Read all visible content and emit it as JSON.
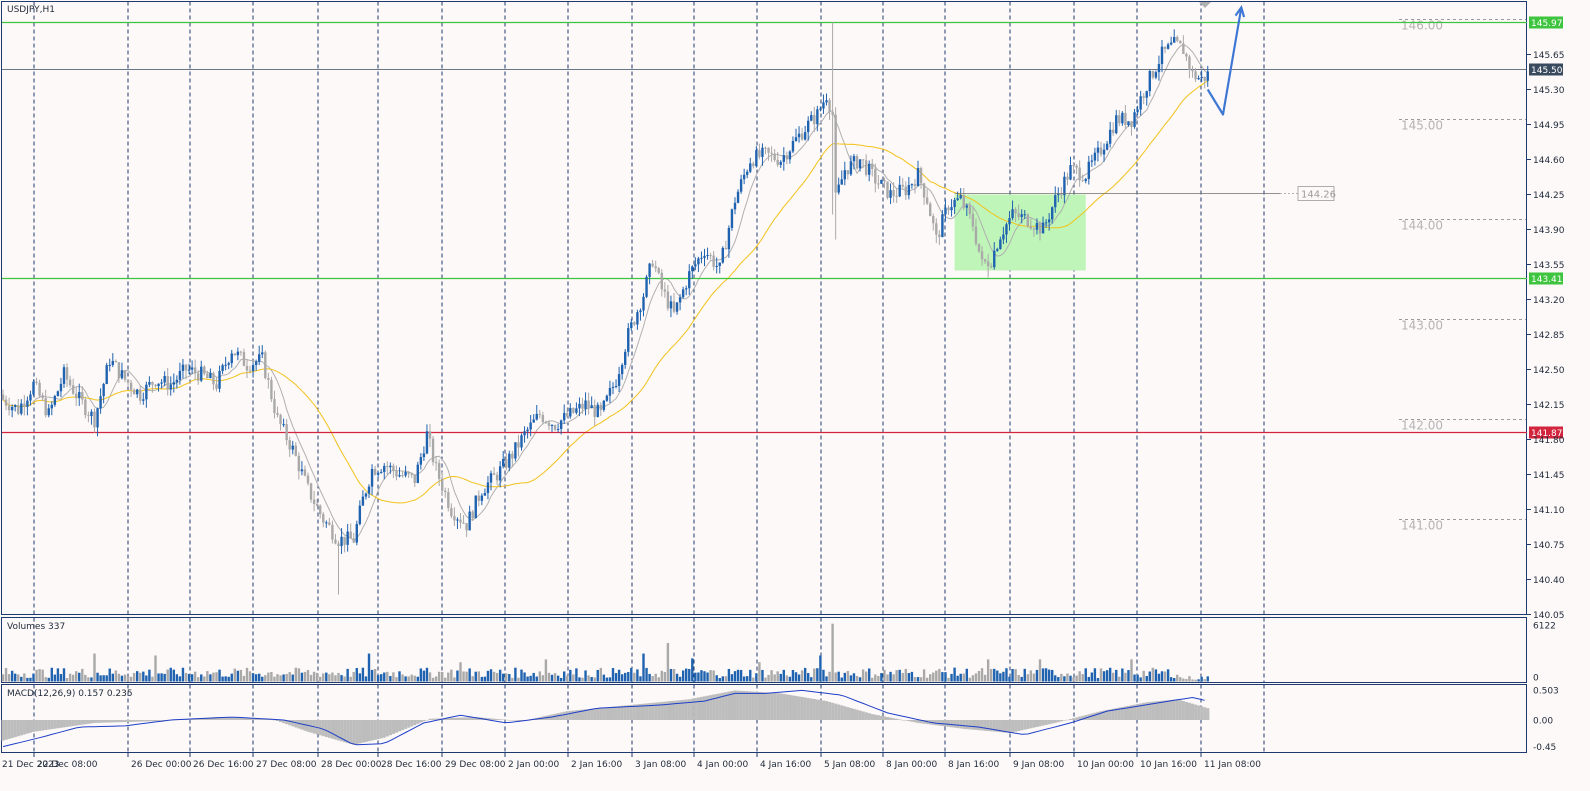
{
  "window": {
    "symbol_title": "USDJPY,H1"
  },
  "colors": {
    "background": "#fdf9f8",
    "frame": "#1f3a6e",
    "bull": "#1f63b0",
    "bear": "#a9a9a9",
    "ma_fast": "#b0b0b0",
    "ma_slow": "#f2c21b",
    "support_resistance": "#3ec43e",
    "key_level": "#d2243c",
    "zone_fill": "#bff5b8",
    "forecast_arrow": "#3e78d4",
    "macd_signal": "#1f3fc8",
    "macd_hist": "#bdbdbd"
  },
  "chart_data": [
    {
      "type": "candlestick",
      "title": "USDJPY,H1",
      "ylim": [
        140.05,
        146.18
      ],
      "y_ticks": [
        "145.65",
        "145.30",
        "144.95",
        "144.60",
        "144.25",
        "143.90",
        "143.55",
        "143.20",
        "142.85",
        "142.50",
        "142.15",
        "141.80",
        "141.45",
        "141.10",
        "140.75",
        "140.40",
        "140.05"
      ],
      "x_tick_labels": [
        "21 Dec 2023",
        "22 Dec 08:00",
        "26 Dec 00:00",
        "26 Dec 16:00",
        "27 Dec 08:00",
        "28 Dec 00:00",
        "28 Dec 16:00",
        "29 Dec 08:00",
        "2 Jan 00:00",
        "2 Jan 16:00",
        "3 Jan 08:00",
        "4 Jan 00:00",
        "4 Jan 16:00",
        "5 Jan 08:00",
        "8 Jan 00:00",
        "8 Jan 16:00",
        "9 Jan 08:00",
        "10 Jan 00:00",
        "10 Jan 16:00",
        "11 Jan 08:00"
      ],
      "price_path": [
        [
          0,
          142.2
        ],
        [
          5,
          142.1
        ],
        [
          10,
          142.35
        ],
        [
          15,
          142.05
        ],
        [
          20,
          142.45
        ],
        [
          25,
          142.2
        ],
        [
          30,
          142.0
        ],
        [
          35,
          142.6
        ],
        [
          40,
          142.4
        ],
        [
          45,
          142.25
        ],
        [
          50,
          142.4
        ],
        [
          55,
          142.35
        ],
        [
          60,
          142.5
        ],
        [
          65,
          142.45
        ],
        [
          70,
          142.35
        ],
        [
          75,
          142.7
        ],
        [
          80,
          142.55
        ],
        [
          85,
          142.6
        ],
        [
          90,
          142.0
        ],
        [
          95,
          141.7
        ],
        [
          100,
          141.3
        ],
        [
          105,
          141.0
        ],
        [
          110,
          140.8
        ],
        [
          115,
          140.8
        ],
        [
          118,
          141.2
        ],
        [
          121,
          141.5
        ],
        [
          125,
          141.55
        ],
        [
          130,
          141.45
        ],
        [
          135,
          141.4
        ],
        [
          139,
          141.85
        ],
        [
          142,
          141.5
        ],
        [
          147,
          141.1
        ],
        [
          152,
          140.95
        ],
        [
          157,
          141.3
        ],
        [
          162,
          141.45
        ],
        [
          167,
          141.65
        ],
        [
          171,
          141.85
        ],
        [
          176,
          142.05
        ],
        [
          181,
          141.95
        ],
        [
          186,
          142.05
        ],
        [
          191,
          142.15
        ],
        [
          196,
          142.05
        ],
        [
          201,
          142.4
        ],
        [
          205,
          142.85
        ],
        [
          210,
          143.25
        ],
        [
          213,
          143.6
        ],
        [
          216,
          143.3
        ],
        [
          220,
          143.05
        ],
        [
          225,
          143.45
        ],
        [
          230,
          143.7
        ],
        [
          235,
          143.5
        ],
        [
          240,
          144.2
        ],
        [
          245,
          144.6
        ],
        [
          250,
          144.65
        ],
        [
          255,
          144.6
        ],
        [
          260,
          144.8
        ],
        [
          264,
          144.95
        ],
        [
          267,
          145.05
        ],
        [
          270,
          145.25
        ],
        [
          272,
          145.05
        ],
        [
          273,
          144.2
        ],
        [
          276,
          144.5
        ],
        [
          281,
          144.6
        ],
        [
          286,
          144.4
        ],
        [
          291,
          144.25
        ],
        [
          296,
          144.3
        ],
        [
          300,
          144.45
        ],
        [
          303,
          144.2
        ],
        [
          306,
          143.8
        ],
        [
          310,
          144.15
        ],
        [
          314,
          144.2
        ],
        [
          318,
          143.95
        ],
        [
          321,
          143.55
        ],
        [
          324,
          143.6
        ],
        [
          327,
          143.85
        ],
        [
          331,
          144.05
        ],
        [
          336,
          144.0
        ],
        [
          341,
          143.9
        ],
        [
          345,
          144.2
        ],
        [
          350,
          144.5
        ],
        [
          355,
          144.45
        ],
        [
          360,
          144.7
        ],
        [
          365,
          145.0
        ],
        [
          370,
          145.0
        ],
        [
          375,
          145.35
        ],
        [
          380,
          145.65
        ],
        [
          384,
          145.75
        ],
        [
          387,
          145.7
        ],
        [
          390,
          145.45
        ],
        [
          393,
          145.4
        ],
        [
          395,
          145.45
        ]
      ],
      "special_candles": [
        {
          "i": 110,
          "low": 140.25
        },
        {
          "i": 272,
          "high": 145.97,
          "low": 144.05
        },
        {
          "i": 273,
          "low": 143.8
        },
        {
          "i": 323,
          "low": 143.42
        }
      ],
      "total_bars": 396,
      "series": [
        {
          "color": "#b0b0b0",
          "period": 8
        },
        {
          "color": "#f2c21b",
          "period": 32
        }
      ],
      "horizontal_levels": [
        {
          "price": 145.97,
          "label": "145.97",
          "color": "#3ec43e"
        },
        {
          "price": 145.5,
          "label": "145.50",
          "color": "#3a4a5e"
        },
        {
          "price": 143.41,
          "label": "143.41",
          "color": "#3ec43e"
        },
        {
          "price": 141.87,
          "label": "141.87",
          "color": "#d2243c"
        }
      ],
      "round_levels": [
        "146.00",
        "145.00",
        "144.00",
        "143.00",
        "142.00",
        "141.00"
      ],
      "marked_level": {
        "price": 144.26,
        "label": "144.26"
      },
      "zone": {
        "from_bar": 312,
        "to_bar": 355,
        "price_top": 144.25,
        "price_bottom": 143.49
      },
      "forecast_path": [
        [
          395,
          145.3
        ],
        [
          400,
          145.05
        ],
        [
          406,
          146.12
        ]
      ]
    },
    {
      "type": "bar",
      "title": "Volumes 337",
      "ylim": [
        0,
        6122
      ],
      "y_ticks": [
        "6122",
        "0"
      ],
      "baseline_volume": 900,
      "spikes": [
        {
          "i": 30,
          "v": 2900
        },
        {
          "i": 50,
          "v": 2700
        },
        {
          "i": 120,
          "v": 2900
        },
        {
          "i": 150,
          "v": 2000
        },
        {
          "i": 178,
          "v": 2300
        },
        {
          "i": 210,
          "v": 2900
        },
        {
          "i": 218,
          "v": 4000
        },
        {
          "i": 226,
          "v": 2400
        },
        {
          "i": 248,
          "v": 2000
        },
        {
          "i": 272,
          "v": 6000
        },
        {
          "i": 268,
          "v": 2700
        },
        {
          "i": 323,
          "v": 2300
        },
        {
          "i": 340,
          "v": 2300
        },
        {
          "i": 370,
          "v": 2300
        }
      ]
    },
    {
      "type": "line",
      "title": "MACD(12,26,9) 0.157 0.235",
      "ylim": [
        -0.55,
        0.6
      ],
      "y_ticks": [
        "0.503",
        "0.00",
        "-0.45"
      ],
      "histogram_path": [
        [
          0,
          -0.35
        ],
        [
          10,
          -0.2
        ],
        [
          30,
          -0.05
        ],
        [
          50,
          -0.02
        ],
        [
          70,
          0.05
        ],
        [
          88,
          0.02
        ],
        [
          100,
          -0.2
        ],
        [
          115,
          -0.42
        ],
        [
          125,
          -0.3
        ],
        [
          140,
          0.02
        ],
        [
          155,
          0.05
        ],
        [
          170,
          -0.02
        ],
        [
          185,
          0.15
        ],
        [
          205,
          0.25
        ],
        [
          225,
          0.35
        ],
        [
          240,
          0.5
        ],
        [
          255,
          0.45
        ],
        [
          270,
          0.32
        ],
        [
          285,
          0.1
        ],
        [
          300,
          -0.05
        ],
        [
          315,
          -0.15
        ],
        [
          330,
          -0.22
        ],
        [
          345,
          -0.05
        ],
        [
          360,
          0.15
        ],
        [
          375,
          0.3
        ],
        [
          385,
          0.35
        ],
        [
          395,
          0.2
        ]
      ],
      "signal_path": [
        [
          0,
          -0.45
        ],
        [
          12,
          -0.3
        ],
        [
          25,
          -0.12
        ],
        [
          40,
          -0.1
        ],
        [
          55,
          0.0
        ],
        [
          75,
          0.05
        ],
        [
          92,
          0.0
        ],
        [
          105,
          -0.15
        ],
        [
          115,
          -0.42
        ],
        [
          125,
          -0.4
        ],
        [
          138,
          -0.05
        ],
        [
          150,
          0.08
        ],
        [
          165,
          -0.05
        ],
        [
          180,
          0.05
        ],
        [
          195,
          0.2
        ],
        [
          215,
          0.25
        ],
        [
          230,
          0.32
        ],
        [
          240,
          0.45
        ],
        [
          250,
          0.45
        ],
        [
          262,
          0.5
        ],
        [
          275,
          0.42
        ],
        [
          290,
          0.12
        ],
        [
          305,
          -0.05
        ],
        [
          320,
          -0.12
        ],
        [
          335,
          -0.25
        ],
        [
          350,
          -0.05
        ],
        [
          362,
          0.15
        ],
        [
          380,
          0.3
        ],
        [
          390,
          0.38
        ],
        [
          395,
          0.32
        ]
      ]
    }
  ]
}
